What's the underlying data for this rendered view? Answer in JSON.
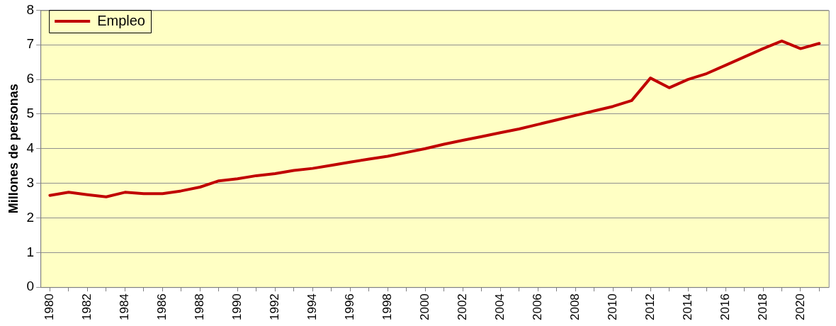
{
  "chart_data": {
    "type": "line",
    "ylabel": "Millones de personas",
    "categories": [
      "1980",
      null,
      "1982",
      null,
      "1984",
      null,
      "1986",
      null,
      "1988",
      null,
      "1990",
      null,
      "1992",
      null,
      "1994",
      null,
      "1996",
      null,
      "1998",
      null,
      "2000",
      null,
      "2002",
      null,
      "2004",
      null,
      "2006",
      null,
      "2008",
      null,
      "2010",
      null,
      "2012",
      null,
      "2014",
      null,
      "2016",
      null,
      "2018",
      null,
      "2020",
      null
    ],
    "series": [
      {
        "name": "Empleo",
        "color": "#c00000",
        "values": [
          2.65,
          2.74,
          2.67,
          2.61,
          2.74,
          2.7,
          2.7,
          2.78,
          2.89,
          3.07,
          3.13,
          3.22,
          3.28,
          3.37,
          3.43,
          3.52,
          3.61,
          3.7,
          3.78,
          3.89,
          4.0,
          4.13,
          4.24,
          4.35,
          4.46,
          4.57,
          4.7,
          4.83,
          4.96,
          5.09,
          5.22,
          5.39,
          6.04,
          5.76,
          6.0,
          6.17,
          6.41,
          6.65,
          6.89,
          7.11,
          6.89,
          7.04
        ]
      }
    ],
    "ylim": [
      0,
      8
    ],
    "yticks": [
      0,
      1,
      2,
      3,
      4,
      5,
      6,
      7,
      8
    ],
    "grid": "y",
    "legend": "top left",
    "marker": "none",
    "line_style": "solid"
  }
}
